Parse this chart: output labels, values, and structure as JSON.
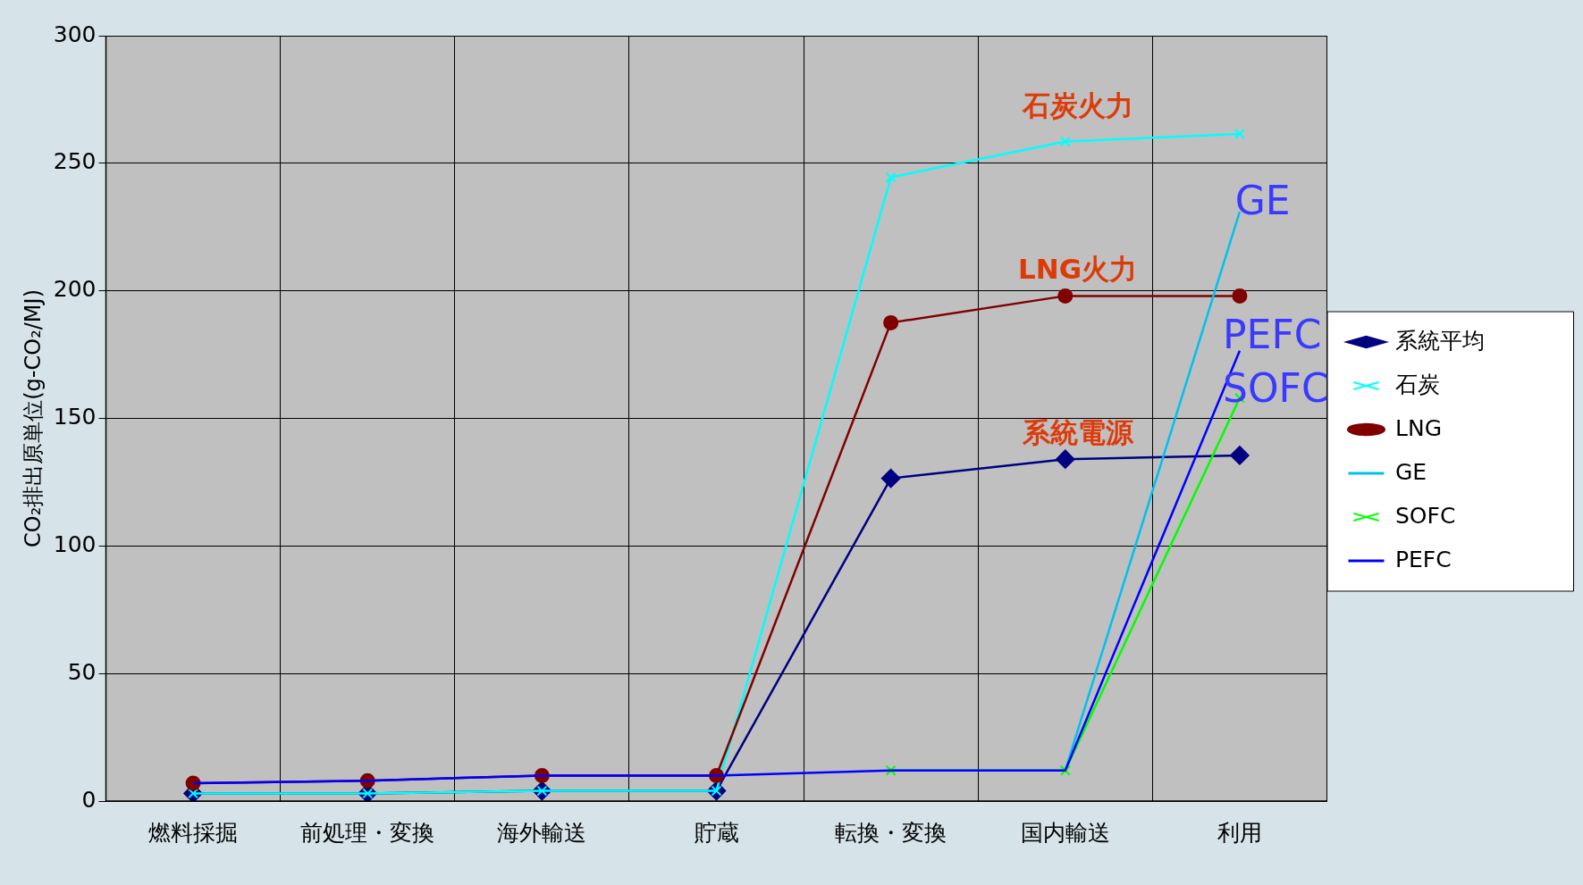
{
  "chart_data": {
    "type": "line",
    "ylabel": "CO₂排出原単位(g-CO₂/MJ)",
    "categories": [
      "燃料採掘",
      "前処理・変換",
      "海外輸送",
      "貯蔵",
      "転換・変換",
      "国内輸送",
      "利用"
    ],
    "series": [
      {
        "name": "系統平均",
        "color": "#000080",
        "marker": "diamond",
        "values": [
          3,
          3,
          4,
          4,
          126.5,
          134,
          135.5
        ]
      },
      {
        "name": "石炭",
        "color": "#00ffff",
        "marker": "cross",
        "values": [
          3,
          3,
          4,
          4,
          244.5,
          258.5,
          261.5
        ]
      },
      {
        "name": "LNG",
        "color": "#800000",
        "marker": "circle",
        "values": [
          7,
          8,
          10,
          10,
          187.5,
          198,
          198
        ]
      },
      {
        "name": "GE",
        "color": "#00c0f0",
        "marker": "none",
        "values": [
          null,
          null,
          null,
          null,
          null,
          12,
          231
        ]
      },
      {
        "name": "SOFC",
        "color": "#00ff00",
        "marker": "cross",
        "values": [
          null,
          null,
          null,
          null,
          12,
          12,
          158
        ]
      },
      {
        "name": "PEFC",
        "color": "#0000ff",
        "marker": "none",
        "values": [
          7,
          8,
          10,
          10,
          12,
          12,
          176.5
        ]
      }
    ],
    "ylim": [
      0,
      300
    ],
    "yticks": [
      0,
      50,
      100,
      150,
      200,
      250,
      300
    ],
    "grid": true,
    "legend": "right",
    "annotations": [
      "石炭火力",
      "LNG火力",
      "系統電源",
      "GE",
      "PEFC",
      "SOFC"
    ]
  }
}
